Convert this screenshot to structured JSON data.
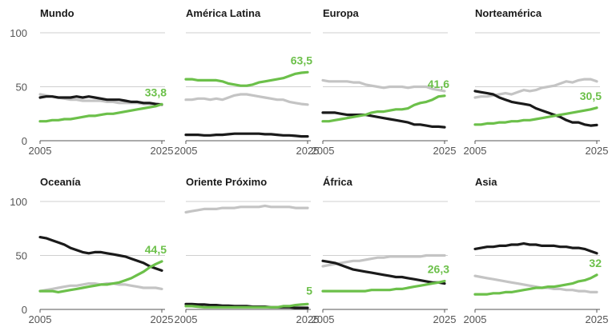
{
  "chart_data": {
    "type": "line",
    "layout": "small-multiples",
    "x": [
      2005,
      2006,
      2007,
      2008,
      2009,
      2010,
      2011,
      2012,
      2013,
      2014,
      2015,
      2016,
      2017,
      2018,
      2019,
      2020,
      2021,
      2022,
      2023,
      2024,
      2025
    ],
    "xticks": [
      "2005",
      "2025"
    ],
    "yticks": [
      "0",
      "50",
      "100"
    ],
    "ylim": [
      0,
      100
    ],
    "grid": true,
    "colors": {
      "green": "#6cc04a",
      "black": "#1a1a1a",
      "gray": "#c4c4c4",
      "text": "#1a1a1a",
      "axis": "#555555"
    },
    "panels": [
      {
        "title": "Mundo",
        "annotation": "33,8",
        "series": [
          {
            "color": "gray",
            "values": [
              43,
              42,
              41,
              40,
              39,
              38,
              38,
              37,
              37,
              37,
              37,
              36,
              36,
              35,
              35,
              35,
              35,
              34,
              34,
              34,
              33.8
            ]
          },
          {
            "color": "black",
            "values": [
              40,
              41,
              41,
              40,
              40,
              40,
              41,
              40,
              41,
              40,
              39,
              38,
              38,
              38,
              37,
              36,
              36,
              35,
              35,
              34,
              33.5
            ]
          },
          {
            "color": "green",
            "values": [
              18,
              18,
              19,
              19,
              20,
              20,
              21,
              22,
              23,
              23,
              24,
              25,
              25,
              26,
              27,
              28,
              29,
              30,
              31,
              32,
              33.8
            ]
          }
        ]
      },
      {
        "title": "América Latina",
        "annotation": "63,5",
        "series": [
          {
            "color": "gray",
            "values": [
              38,
              38,
              39,
              39,
              38,
              39,
              38,
              40,
              42,
              43,
              43,
              42,
              41,
              40,
              39,
              38,
              38,
              36,
              35,
              34,
              33.5
            ]
          },
          {
            "color": "black",
            "values": [
              5.5,
              5.5,
              5.5,
              5,
              5,
              5.5,
              5.5,
              6,
              6.5,
              6.5,
              6.5,
              6.5,
              6.5,
              6,
              6,
              5.5,
              5,
              5,
              4.5,
              4,
              4
            ]
          },
          {
            "color": "green",
            "values": [
              57,
              57,
              56,
              56,
              56,
              56,
              55,
              53,
              52,
              51,
              51,
              52,
              54,
              55,
              56,
              57,
              58,
              60,
              62,
              63,
              63.5
            ]
          }
        ]
      },
      {
        "title": "Europa",
        "annotation": "41,6",
        "series": [
          {
            "color": "gray",
            "values": [
              56,
              55,
              55,
              55,
              55,
              54,
              54,
              52,
              51,
              50,
              49,
              50,
              50,
              50,
              49,
              50,
              50,
              50,
              48,
              47,
              46
            ]
          },
          {
            "color": "black",
            "values": [
              26,
              26,
              26,
              25,
              24,
              24,
              24,
              24,
              23,
              22,
              21,
              20,
              19,
              18,
              17,
              15,
              15,
              14,
              13,
              13,
              12.5
            ]
          },
          {
            "color": "green",
            "values": [
              18,
              18,
              19,
              20,
              21,
              22,
              23,
              24,
              26,
              27,
              27,
              28,
              29,
              29,
              30,
              33,
              35,
              36,
              38,
              41,
              41.6
            ]
          }
        ]
      },
      {
        "title": "Norteamérica",
        "annotation": "30,5",
        "series": [
          {
            "color": "gray",
            "values": [
              40,
              41,
              41,
              42,
              43,
              44,
              43,
              45,
              47,
              46,
              47,
              49,
              50,
              51,
              53,
              55,
              54,
              56,
              57,
              57,
              55
            ]
          },
          {
            "color": "black",
            "values": [
              46,
              45,
              44,
              43,
              40,
              38,
              36,
              35,
              34,
              33,
              30,
              28,
              26,
              24,
              22,
              19,
              17,
              17,
              15,
              14,
              14.5
            ]
          },
          {
            "color": "green",
            "values": [
              15,
              15,
              16,
              16,
              17,
              17,
              18,
              18,
              19,
              19,
              20,
              21,
              22,
              23,
              24,
              25,
              26,
              27,
              28,
              29,
              30.5
            ]
          }
        ]
      },
      {
        "title": "Oceanía",
        "annotation": "44,5",
        "series": [
          {
            "color": "gray",
            "values": [
              17,
              18,
              19,
              20,
              21,
              22,
              22,
              23,
              24,
              24,
              23,
              24,
              24,
              23,
              23,
              22,
              21,
              20,
              20,
              20,
              19
            ]
          },
          {
            "color": "black",
            "values": [
              67,
              66,
              64,
              62,
              60,
              57,
              55,
              53,
              52,
              53,
              53,
              52,
              51,
              50,
              49,
              47,
              45,
              43,
              40,
              38,
              36
            ]
          },
          {
            "color": "green",
            "values": [
              17,
              17,
              17,
              16,
              17,
              18,
              19,
              20,
              21,
              22,
              23,
              23,
              24,
              25,
              27,
              29,
              32,
              35,
              39,
              42,
              44.5
            ]
          }
        ]
      },
      {
        "title": "Oriente Próximo",
        "annotation": "5",
        "series": [
          {
            "color": "gray",
            "values": [
              90,
              91,
              92,
              93,
              93,
              93,
              94,
              94,
              94,
              95,
              95,
              95,
              95,
              96,
              95,
              95,
              95,
              95,
              94,
              94,
              94
            ]
          },
          {
            "color": "black",
            "values": [
              5,
              5,
              4.5,
              4.5,
              4,
              4,
              3.5,
              3.5,
              3,
              3,
              3,
              2.5,
              2.5,
              2.5,
              2,
              2,
              2,
              2,
              1.5,
              1.5,
              1.5
            ]
          },
          {
            "color": "green",
            "values": [
              3,
              3,
              2.5,
              2,
              2,
              2,
              2,
              2,
              2,
              2,
              2,
              2,
              2,
              2,
              2,
              2,
              3,
              3,
              4,
              4.5,
              5
            ]
          }
        ]
      },
      {
        "title": "África",
        "annotation": "26,3",
        "series": [
          {
            "color": "gray",
            "values": [
              40,
              41,
              42,
              43,
              44,
              45,
              45,
              46,
              47,
              48,
              48,
              49,
              49,
              49,
              49,
              49,
              49,
              50,
              50,
              50,
              50
            ]
          },
          {
            "color": "black",
            "values": [
              45,
              44,
              43,
              41,
              39,
              37,
              36,
              35,
              34,
              33,
              32,
              31,
              30,
              30,
              29,
              28,
              27,
              26,
              25,
              25,
              24
            ]
          },
          {
            "color": "green",
            "values": [
              17,
              17,
              17,
              17,
              17,
              17,
              17,
              17,
              18,
              18,
              18,
              18,
              19,
              19,
              20,
              21,
              22,
              23,
              24,
              25,
              26.3
            ]
          }
        ]
      },
      {
        "title": "Asia",
        "annotation": "32",
        "series": [
          {
            "color": "gray",
            "values": [
              31,
              30,
              29,
              28,
              27,
              26,
              25,
              24,
              23,
              22,
              21,
              20,
              20,
              19,
              19,
              18,
              18,
              17,
              17,
              16,
              16
            ]
          },
          {
            "color": "black",
            "values": [
              56,
              57,
              58,
              58,
              59,
              59,
              60,
              60,
              61,
              60,
              60,
              59,
              59,
              59,
              58,
              58,
              57,
              57,
              56,
              54,
              52
            ]
          },
          {
            "color": "green",
            "values": [
              14,
              14,
              14,
              15,
              15,
              16,
              16,
              17,
              18,
              19,
              20,
              20,
              21,
              21,
              22,
              23,
              24,
              26,
              27,
              29,
              32
            ]
          }
        ]
      }
    ]
  }
}
